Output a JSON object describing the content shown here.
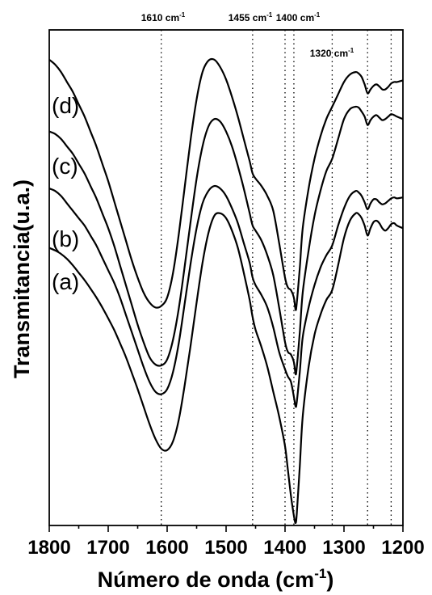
{
  "chart_data": {
    "type": "line",
    "xlabel": "Número de onda (cm-1)",
    "xlabel_main": "Número de onda (cm",
    "xlabel_sup": "-1",
    "xlabel_close": ")",
    "ylabel": "Transmitancia(u.a.)",
    "xlim": [
      1800,
      1200
    ],
    "x_reversed": true,
    "ylim": [
      0,
      100
    ],
    "y_ticks_shown": false,
    "x_ticks": [
      1800,
      1700,
      1600,
      1500,
      1400,
      1300,
      1200
    ],
    "x_tick_labels": [
      "1800",
      "1700",
      "1600",
      "1500",
      "1400",
      "1300",
      "1200"
    ],
    "reference_lines": [
      {
        "x": 1610,
        "label_main": "1610 cm",
        "label_sup": "-1",
        "labeled": true
      },
      {
        "x": 1455,
        "label_main": "1455 cm",
        "label_sup": "-1",
        "labeled": true
      },
      {
        "x": 1400,
        "label_main": "1400 cm",
        "label_sup": "-1",
        "labeled": true
      },
      {
        "x": 1385,
        "labeled": false
      },
      {
        "x": 1320,
        "label_main": "1320 cm",
        "label_sup": "-1",
        "labeled": true
      },
      {
        "x": 1260,
        "labeled": false
      },
      {
        "x": 1220,
        "labeled": false
      }
    ],
    "series": [
      {
        "name": "(a)",
        "x": [
          1800,
          1790,
          1780,
          1770,
          1760,
          1750,
          1740,
          1730,
          1720,
          1710,
          1700,
          1690,
          1680,
          1670,
          1660,
          1650,
          1640,
          1630,
          1620,
          1610,
          1600,
          1590,
          1580,
          1570,
          1560,
          1550,
          1540,
          1530,
          1520,
          1510,
          1500,
          1490,
          1480,
          1470,
          1460,
          1455,
          1450,
          1440,
          1430,
          1420,
          1410,
          1400,
          1395,
          1390,
          1385,
          1382,
          1380,
          1375,
          1370,
          1360,
          1350,
          1340,
          1330,
          1320,
          1310,
          1300,
          1290,
          1280,
          1275,
          1270,
          1265,
          1260,
          1255,
          1250,
          1245,
          1240,
          1235,
          1230,
          1225,
          1220,
          1215,
          1210,
          1200
        ],
        "y": [
          56.0,
          55.5,
          54.8,
          53.8,
          52.5,
          51.0,
          49.5,
          47.8,
          46.0,
          44.0,
          41.8,
          39.5,
          36.8,
          34.0,
          30.8,
          27.5,
          24.0,
          20.5,
          17.5,
          15.5,
          15.2,
          17.0,
          21.5,
          28.5,
          36.5,
          45.0,
          53.0,
          59.0,
          62.5,
          63.0,
          62.0,
          59.5,
          56.0,
          51.0,
          45.5,
          42.0,
          39.5,
          36.0,
          32.0,
          27.0,
          22.0,
          16.0,
          11.0,
          6.0,
          2.0,
          0.5,
          2.5,
          12.0,
          22.0,
          32.0,
          38.5,
          42.5,
          45.5,
          47.5,
          52.5,
          58.0,
          61.5,
          63.0,
          62.8,
          62.0,
          60.5,
          58.5,
          60.0,
          61.2,
          61.5,
          61.0,
          60.0,
          59.5,
          60.0,
          60.8,
          61.0,
          60.5,
          60.0
        ]
      },
      {
        "name": "(b)",
        "x": [
          1800,
          1790,
          1780,
          1770,
          1760,
          1750,
          1740,
          1730,
          1720,
          1710,
          1700,
          1690,
          1680,
          1670,
          1660,
          1650,
          1640,
          1630,
          1620,
          1610,
          1600,
          1590,
          1580,
          1570,
          1560,
          1550,
          1540,
          1530,
          1520,
          1510,
          1500,
          1490,
          1480,
          1470,
          1460,
          1455,
          1450,
          1440,
          1430,
          1420,
          1410,
          1400,
          1395,
          1390,
          1385,
          1382,
          1380,
          1375,
          1370,
          1360,
          1350,
          1340,
          1330,
          1320,
          1310,
          1300,
          1290,
          1280,
          1275,
          1270,
          1265,
          1260,
          1255,
          1250,
          1245,
          1240,
          1235,
          1230,
          1225,
          1220,
          1215,
          1210,
          1200
        ],
        "y": [
          68.0,
          67.5,
          66.5,
          65.0,
          63.5,
          62.0,
          60.5,
          58.5,
          56.5,
          54.0,
          51.5,
          49.0,
          46.0,
          42.5,
          39.0,
          35.5,
          32.0,
          29.0,
          27.0,
          26.5,
          27.5,
          31.0,
          37.0,
          45.0,
          53.0,
          60.0,
          65.0,
          67.5,
          68.5,
          68.0,
          66.5,
          64.0,
          61.0,
          57.0,
          53.0,
          50.0,
          48.5,
          46.5,
          44.0,
          40.0,
          35.0,
          31.5,
          30.0,
          29.0,
          26.0,
          24.0,
          25.0,
          31.0,
          38.0,
          44.0,
          48.5,
          52.0,
          54.5,
          56.5,
          60.5,
          64.0,
          66.5,
          67.5,
          67.2,
          66.5,
          65.2,
          63.8,
          65.0,
          65.8,
          65.8,
          65.2,
          64.8,
          65.0,
          65.5,
          66.0,
          66.2,
          66.0,
          66.2
        ]
      },
      {
        "name": "(c)",
        "x": [
          1800,
          1790,
          1780,
          1770,
          1760,
          1750,
          1740,
          1730,
          1720,
          1710,
          1700,
          1690,
          1680,
          1670,
          1660,
          1650,
          1640,
          1630,
          1620,
          1610,
          1600,
          1590,
          1580,
          1570,
          1560,
          1550,
          1540,
          1530,
          1520,
          1510,
          1500,
          1490,
          1480,
          1470,
          1460,
          1455,
          1450,
          1440,
          1430,
          1420,
          1410,
          1400,
          1395,
          1390,
          1385,
          1382,
          1380,
          1375,
          1370,
          1360,
          1350,
          1340,
          1330,
          1320,
          1310,
          1300,
          1290,
          1280,
          1275,
          1270,
          1265,
          1260,
          1255,
          1250,
          1245,
          1240,
          1235,
          1230,
          1225,
          1220,
          1215,
          1210,
          1200
        ],
        "y": [
          79.5,
          79.0,
          78.0,
          76.5,
          75.0,
          73.0,
          71.0,
          68.5,
          66.0,
          63.0,
          60.0,
          56.5,
          52.5,
          48.5,
          44.5,
          40.5,
          37.0,
          34.0,
          32.5,
          32.3,
          33.5,
          37.5,
          44.0,
          52.5,
          61.5,
          70.0,
          76.5,
          80.5,
          82.0,
          81.5,
          79.5,
          76.5,
          72.5,
          68.0,
          63.0,
          60.5,
          59.5,
          57.5,
          54.5,
          50.5,
          44.0,
          37.0,
          35.0,
          34.5,
          33.0,
          30.5,
          32.0,
          39.0,
          47.0,
          55.5,
          62.5,
          67.5,
          71.5,
          74.0,
          78.0,
          82.0,
          84.0,
          84.5,
          84.3,
          83.5,
          82.5,
          80.8,
          81.8,
          82.5,
          82.8,
          82.3,
          81.8,
          82.0,
          82.5,
          83.0,
          82.8,
          82.5,
          82.0
        ]
      },
      {
        "name": "(d)",
        "x": [
          1800,
          1790,
          1780,
          1770,
          1760,
          1750,
          1740,
          1730,
          1720,
          1710,
          1700,
          1690,
          1680,
          1670,
          1660,
          1650,
          1640,
          1630,
          1620,
          1610,
          1600,
          1590,
          1580,
          1570,
          1560,
          1550,
          1540,
          1530,
          1520,
          1510,
          1500,
          1490,
          1480,
          1470,
          1460,
          1455,
          1450,
          1440,
          1430,
          1420,
          1410,
          1400,
          1395,
          1390,
          1385,
          1382,
          1380,
          1375,
          1370,
          1360,
          1350,
          1340,
          1330,
          1320,
          1310,
          1300,
          1290,
          1280,
          1275,
          1270,
          1265,
          1260,
          1255,
          1250,
          1245,
          1240,
          1235,
          1230,
          1225,
          1220,
          1215,
          1210,
          1200
        ],
        "y": [
          94.0,
          93.0,
          91.5,
          89.5,
          87.5,
          85.0,
          82.5,
          79.5,
          76.5,
          73.0,
          69.5,
          65.5,
          61.5,
          57.5,
          53.5,
          50.0,
          47.0,
          45.0,
          44.0,
          44.3,
          46.0,
          51.0,
          59.0,
          68.5,
          78.0,
          86.0,
          91.5,
          93.8,
          94.0,
          92.5,
          90.0,
          86.5,
          82.5,
          78.0,
          73.5,
          71.0,
          70.0,
          68.5,
          66.5,
          63.5,
          57.0,
          50.0,
          48.0,
          47.5,
          46.0,
          43.5,
          45.0,
          52.0,
          60.0,
          68.0,
          74.0,
          78.5,
          82.0,
          84.5,
          87.0,
          89.5,
          91.0,
          91.5,
          91.2,
          90.5,
          89.0,
          87.2,
          88.0,
          88.7,
          89.0,
          88.6,
          88.0,
          88.0,
          88.5,
          89.2,
          89.5,
          89.5,
          89.8
        ]
      }
    ]
  }
}
